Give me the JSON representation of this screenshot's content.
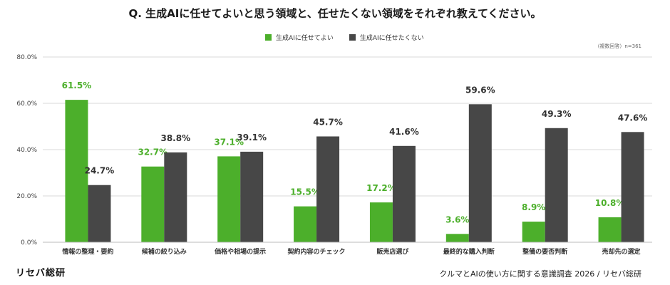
{
  "title": "Q. 生成AIに任せてよいと思う領域と、任せたくない領域をそれぞれ教えてください。",
  "note": "（複数回答）n=361",
  "source": "クルマとAIの使い方に関する意識調査 2026 / リセバ総研",
  "logo": {
    "name": "リセバ総研"
  },
  "colors": {
    "good": "#4caf2b",
    "bad": "#474747",
    "grid": "#d9d9d9",
    "watermark": "#f2f2f2"
  },
  "chart_data": {
    "type": "bar",
    "categories": [
      "情報の整理・要約",
      "候補の絞り込み",
      "価格や相場の提示",
      "契約内容のチェック",
      "販売店選び",
      "最終的な購入判断",
      "整備の要否判断",
      "売却先の選定"
    ],
    "series": [
      {
        "name": "生成AIに任せてよい",
        "values": [
          61.5,
          32.7,
          37.1,
          15.5,
          17.2,
          3.6,
          8.9,
          10.8
        ],
        "labels": [
          "61.5%",
          "32.7%",
          "37.1%",
          "15.5%",
          "17.2%",
          "3.6%",
          "8.9%",
          "10.8%"
        ]
      },
      {
        "name": "生成AIに任せたくない",
        "values": [
          24.7,
          38.8,
          39.1,
          45.7,
          41.6,
          59.6,
          49.3,
          47.6
        ],
        "labels": [
          "24.7%",
          "38.8%",
          "39.1%",
          "45.7%",
          "41.6%",
          "59.6%",
          "49.3%",
          "47.6%"
        ]
      }
    ],
    "ylim": [
      0,
      80
    ],
    "yticks": [
      "0.0%",
      "20.0%",
      "40.0%",
      "60.0%",
      "80.0%"
    ],
    "grid": true,
    "legend": "top-center"
  }
}
